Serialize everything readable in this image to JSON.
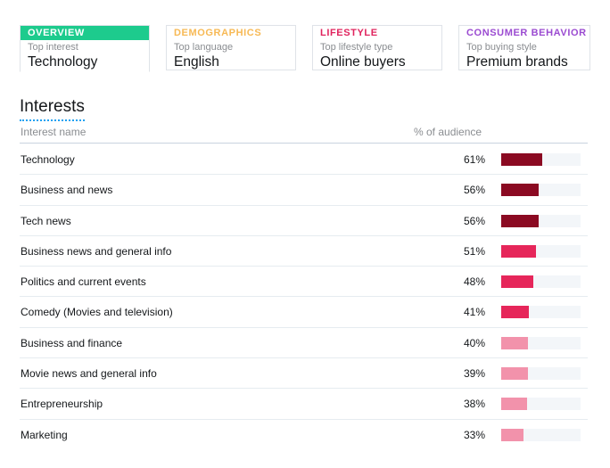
{
  "tabs": [
    {
      "label": "OVERVIEW",
      "sublabel": "Top interest",
      "value": "Technology",
      "color": "#1dcb8d",
      "active": true
    },
    {
      "label": "DEMOGRAPHICS",
      "sublabel": "Top language",
      "value": "English",
      "color": "#f7b955",
      "active": false
    },
    {
      "label": "LIFESTYLE",
      "sublabel": "Top lifestyle type",
      "value": "Online buyers",
      "color": "#e0245e",
      "active": false
    },
    {
      "label": "CONSUMER BEHAVIOR",
      "sublabel": "Top buying style",
      "value": "Premium brands",
      "color": "#9b4bd1",
      "active": false
    }
  ],
  "section_title": "Interests",
  "columns": {
    "name": "Interest name",
    "percent": "% of audience"
  },
  "colors": {
    "dark": "#8b0a22",
    "medium": "#e6265a",
    "light": "#f292ab",
    "track": "#f3f6f9"
  },
  "rows": [
    {
      "name": "Technology",
      "percent": "61%",
      "value": 61,
      "shade": "dark"
    },
    {
      "name": "Business and news",
      "percent": "56%",
      "value": 56,
      "shade": "dark"
    },
    {
      "name": "Tech news",
      "percent": "56%",
      "value": 56,
      "shade": "dark"
    },
    {
      "name": "Business news and general info",
      "percent": "51%",
      "value": 51,
      "shade": "medium"
    },
    {
      "name": "Politics and current events",
      "percent": "48%",
      "value": 48,
      "shade": "medium"
    },
    {
      "name": "Comedy (Movies and television)",
      "percent": "41%",
      "value": 41,
      "shade": "medium"
    },
    {
      "name": "Business and finance",
      "percent": "40%",
      "value": 40,
      "shade": "light"
    },
    {
      "name": "Movie news and general info",
      "percent": "39%",
      "value": 39,
      "shade": "light"
    },
    {
      "name": "Entrepreneurship",
      "percent": "38%",
      "value": 38,
      "shade": "light"
    },
    {
      "name": "Marketing",
      "percent": "33%",
      "value": 33,
      "shade": "light"
    }
  ]
}
